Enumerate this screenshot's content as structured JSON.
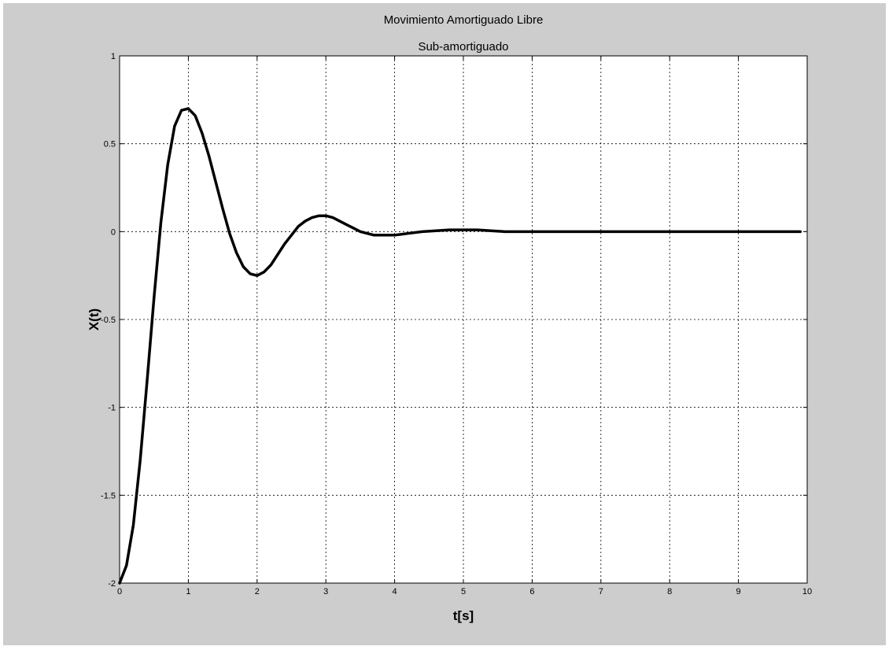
{
  "chart_data": {
    "type": "line",
    "title": "Movimiento Amortiguado Libre",
    "subtitle": "Sub-amortiguado",
    "xlabel": "t[s]",
    "ylabel": "X(t)",
    "xlim": [
      0,
      10
    ],
    "ylim": [
      -2,
      1
    ],
    "xticks": [
      0,
      1,
      2,
      3,
      4,
      5,
      6,
      7,
      8,
      9,
      10
    ],
    "yticks": [
      -2,
      -1.5,
      -1,
      -0.5,
      0,
      0.5,
      1
    ],
    "xtick_labels": [
      "0",
      "1",
      "2",
      "3",
      "4",
      "5",
      "6",
      "7",
      "8",
      "9",
      "10"
    ],
    "ytick_labels": [
      "-2",
      "-1.5",
      "-1",
      "-0.5",
      "0",
      "0.5",
      "1"
    ],
    "grid": true,
    "line_color": "#000000",
    "background_color": "#cdcdcd",
    "axes_color": "#ffffff",
    "series": [
      {
        "x": [
          0,
          0.1,
          0.2,
          0.3,
          0.4,
          0.5,
          0.6,
          0.7,
          0.8,
          0.9,
          1.0,
          1.1,
          1.2,
          1.3,
          1.4,
          1.5,
          1.6,
          1.7,
          1.8,
          1.9,
          2.0,
          2.1,
          2.2,
          2.3,
          2.4,
          2.5,
          2.6,
          2.7,
          2.8,
          2.9,
          3.0,
          3.1,
          3.2,
          3.3,
          3.4,
          3.5,
          3.6,
          3.7,
          3.8,
          3.9,
          4.0,
          4.2,
          4.4,
          4.6,
          4.8,
          5.0,
          5.2,
          5.4,
          5.6,
          5.8,
          6.0,
          6.5,
          7.0,
          7.5,
          8.0,
          8.5,
          9.0,
          9.5,
          9.9
        ],
        "y": [
          -2.0,
          -1.9,
          -1.67,
          -1.3,
          -0.85,
          -0.38,
          0.05,
          0.38,
          0.6,
          0.69,
          0.7,
          0.66,
          0.56,
          0.43,
          0.28,
          0.13,
          -0.01,
          -0.12,
          -0.2,
          -0.24,
          -0.25,
          -0.23,
          -0.19,
          -0.13,
          -0.07,
          -0.02,
          0.03,
          0.06,
          0.08,
          0.09,
          0.09,
          0.08,
          0.06,
          0.04,
          0.02,
          0.0,
          -0.01,
          -0.02,
          -0.02,
          -0.02,
          -0.02,
          -0.01,
          0.0,
          0.005,
          0.01,
          0.01,
          0.01,
          0.005,
          0.0,
          0.0,
          0.0,
          0.0,
          0.0,
          0.0,
          0.0,
          0.0,
          0.0,
          0.0,
          0.0
        ]
      }
    ]
  }
}
